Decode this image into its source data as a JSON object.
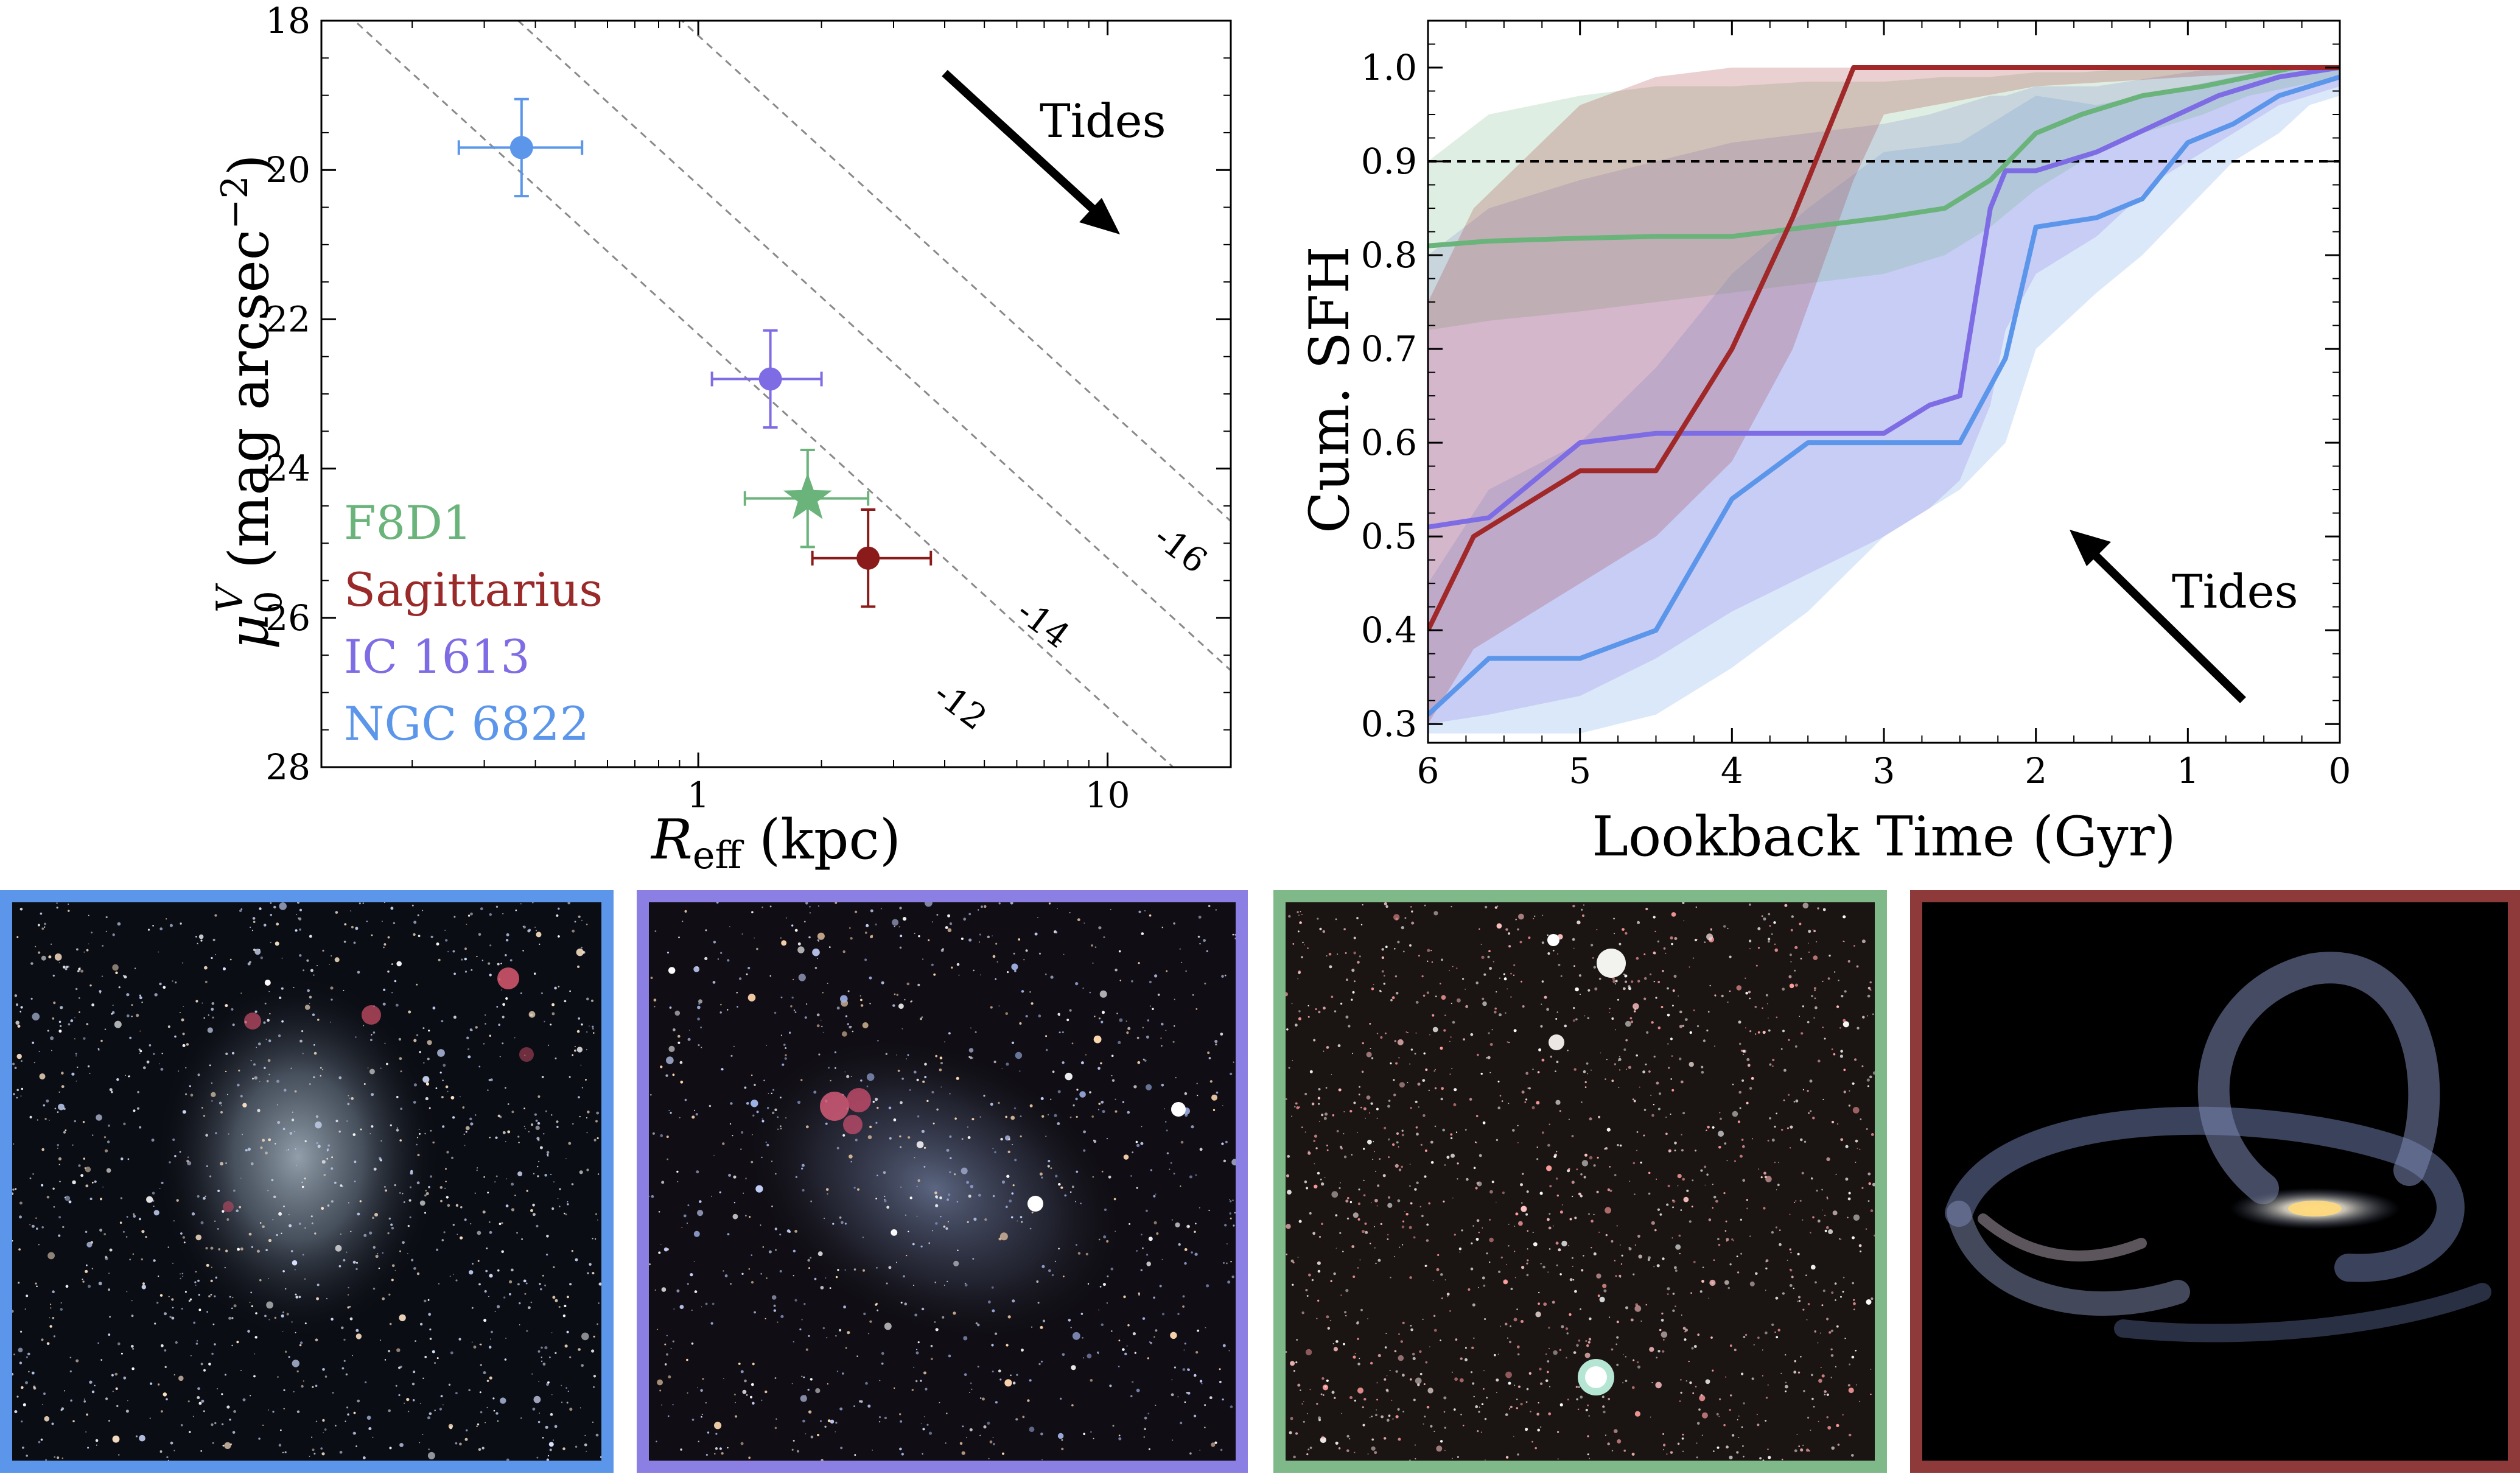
{
  "chart_data": [
    {
      "type": "scatter",
      "xscale": "log",
      "xlim": [
        0.12,
        20
      ],
      "ylim": [
        28,
        18
      ],
      "xlabel_base": "R",
      "xlabel_sub": "eff",
      "xlabel_tail": " (kpc)",
      "ylabel_base": "μ",
      "ylabel_sub": "0",
      "ylabel_sup": "V",
      "ylabel_tail": " (mag arcsec",
      "ylabel_exp": "−2",
      "ylabel_close": ")",
      "xticks": [
        1,
        10
      ],
      "xtick_labels": [
        "1",
        "10"
      ],
      "yticks": [
        18,
        20,
        22,
        24,
        26,
        28
      ],
      "ytick_labels": [
        "18",
        "20",
        "22",
        "24",
        "26",
        "28"
      ],
      "reference_lines": [
        {
          "label": "-16",
          "offset": 22.2,
          "label_at": [
            14.5,
            25.2
          ]
        },
        {
          "label": "-14",
          "offset": 20.2,
          "label_at": [
            6.7,
            26.2
          ]
        },
        {
          "label": "-12",
          "offset": 18.2,
          "label_at": [
            4.2,
            27.3
          ]
        }
      ],
      "reference_slope": 5.0,
      "annotation": "Tides",
      "points": [
        {
          "name": "NGC 6822",
          "x": 0.37,
          "y": 19.7,
          "xerr": [
            0.11,
            0.15
          ],
          "yerr": [
            0.65,
            0.65
          ],
          "marker": "circle",
          "color": "#5b96ea"
        },
        {
          "name": "IC 1613",
          "x": 1.5,
          "y": 22.8,
          "xerr": [
            0.42,
            0.5
          ],
          "yerr": [
            0.65,
            0.65
          ],
          "marker": "circle",
          "color": "#7e6ce5"
        },
        {
          "name": "F8D1",
          "x": 1.85,
          "y": 24.4,
          "xerr": [
            0.55,
            0.75
          ],
          "yerr": [
            0.65,
            0.65
          ],
          "marker": "star",
          "color": "#6ab37a"
        },
        {
          "name": "Sagittarius",
          "x": 2.6,
          "y": 25.2,
          "xerr": [
            0.7,
            1.1
          ],
          "yerr": [
            0.65,
            0.65
          ],
          "marker": "circle",
          "color": "#8b1a1a"
        }
      ],
      "legend": [
        {
          "label": "F8D1",
          "color": "#6ab37a"
        },
        {
          "label": "Sagittarius",
          "color": "#9a2a2a"
        },
        {
          "label": "IC 1613",
          "color": "#7e6ce5"
        },
        {
          "label": "NGC 6822",
          "color": "#5b96ea"
        }
      ]
    },
    {
      "type": "line",
      "xlim": [
        6,
        0
      ],
      "ylim": [
        0.28,
        1.05
      ],
      "xlabel": "Lookback Time (Gyr)",
      "ylabel": "Cum. SFH",
      "xticks": [
        6,
        5,
        4,
        3,
        2,
        1,
        0
      ],
      "xtick_labels": [
        "6",
        "5",
        "4",
        "3",
        "2",
        "1",
        "0"
      ],
      "yticks": [
        0.3,
        0.4,
        0.5,
        0.6,
        0.7,
        0.8,
        0.9,
        1.0
      ],
      "ytick_labels": [
        "0.3",
        "0.4",
        "0.5",
        "0.6",
        "0.7",
        "0.8",
        "0.9",
        "1.0"
      ],
      "hline": 0.9,
      "annotation": "Tides",
      "series": [
        {
          "name": "NGC 6822",
          "color": "#5b96ea",
          "x": [
            6,
            5.6,
            5,
            4.5,
            4,
            3.5,
            3,
            2.5,
            2.2,
            2.0,
            1.6,
            1.3,
            1.0,
            0.7,
            0.4,
            0.2,
            0
          ],
          "y": [
            0.31,
            0.37,
            0.37,
            0.4,
            0.54,
            0.6,
            0.6,
            0.6,
            0.69,
            0.83,
            0.84,
            0.86,
            0.92,
            0.94,
            0.97,
            0.98,
            0.99
          ],
          "band_upper": [
            0.45,
            0.55,
            0.6,
            0.68,
            0.78,
            0.85,
            0.91,
            0.92,
            0.95,
            0.97,
            0.96,
            0.97,
            0.98,
            0.99,
            1.0,
            1.0,
            1.0
          ],
          "band_lower": [
            0.29,
            0.29,
            0.29,
            0.31,
            0.36,
            0.42,
            0.5,
            0.55,
            0.6,
            0.7,
            0.76,
            0.8,
            0.85,
            0.9,
            0.93,
            0.96,
            0.97
          ]
        },
        {
          "name": "IC 1613",
          "color": "#7e6ce5",
          "x": [
            6,
            5.6,
            5,
            4.5,
            4,
            3.5,
            3,
            2.7,
            2.5,
            2.3,
            2.2,
            2.0,
            1.6,
            1.2,
            0.8,
            0.4,
            0
          ],
          "y": [
            0.51,
            0.52,
            0.6,
            0.61,
            0.61,
            0.61,
            0.61,
            0.64,
            0.65,
            0.85,
            0.89,
            0.89,
            0.91,
            0.94,
            0.97,
            0.99,
            1.0
          ],
          "band_upper": [
            0.8,
            0.85,
            0.88,
            0.9,
            0.92,
            0.93,
            0.94,
            0.95,
            0.96,
            0.97,
            0.97,
            0.98,
            0.98,
            0.99,
            1.0,
            1.0,
            1.0
          ],
          "band_lower": [
            0.3,
            0.31,
            0.33,
            0.37,
            0.42,
            0.46,
            0.5,
            0.53,
            0.56,
            0.64,
            0.72,
            0.78,
            0.82,
            0.88,
            0.92,
            0.96,
            0.98
          ]
        },
        {
          "name": "F8D1",
          "color": "#6ab37a",
          "x": [
            6,
            5.6,
            5,
            4.5,
            4,
            3.5,
            3,
            2.6,
            2.3,
            2.0,
            1.7,
            1.3,
            0.9,
            0.6,
            0.3,
            0
          ],
          "y": [
            0.81,
            0.815,
            0.818,
            0.82,
            0.82,
            0.83,
            0.84,
            0.85,
            0.88,
            0.93,
            0.95,
            0.97,
            0.98,
            0.99,
            1.0,
            1.0
          ],
          "band_upper": [
            0.9,
            0.95,
            0.97,
            0.98,
            0.98,
            0.985,
            0.985,
            0.99,
            0.99,
            0.995,
            0.995,
            1.0,
            1.0,
            1.0,
            1.0,
            1.0
          ],
          "band_lower": [
            0.72,
            0.73,
            0.74,
            0.75,
            0.76,
            0.77,
            0.78,
            0.8,
            0.83,
            0.87,
            0.9,
            0.93,
            0.95,
            0.97,
            0.98,
            0.99
          ]
        },
        {
          "name": "Sagittarius",
          "color": "#a02828",
          "x": [
            6,
            5.7,
            5,
            4.5,
            4,
            3.6,
            3.2,
            3.0,
            2.0,
            1.0,
            0
          ],
          "y": [
            0.4,
            0.5,
            0.57,
            0.57,
            0.7,
            0.84,
            1.0,
            1.0,
            1.0,
            1.0,
            1.0
          ],
          "band_upper": [
            0.75,
            0.85,
            0.96,
            0.99,
            1.0,
            1.0,
            1.0,
            1.0,
            1.0,
            1.0,
            1.0
          ],
          "band_lower": [
            0.3,
            0.38,
            0.45,
            0.5,
            0.58,
            0.7,
            0.88,
            0.95,
            0.98,
            0.99,
            1.0
          ]
        }
      ]
    }
  ],
  "panels": [
    {
      "name": "NGC 6822",
      "border_color": "#5b96ea",
      "kind": "irregular"
    },
    {
      "name": "IC 1613",
      "border_color": "#8b7fe3",
      "kind": "irregular-knots"
    },
    {
      "name": "F8D1",
      "border_color": "#7fb98a",
      "kind": "field"
    },
    {
      "name": "Sagittarius",
      "border_color": "#8e3a3a",
      "kind": "stream"
    }
  ]
}
